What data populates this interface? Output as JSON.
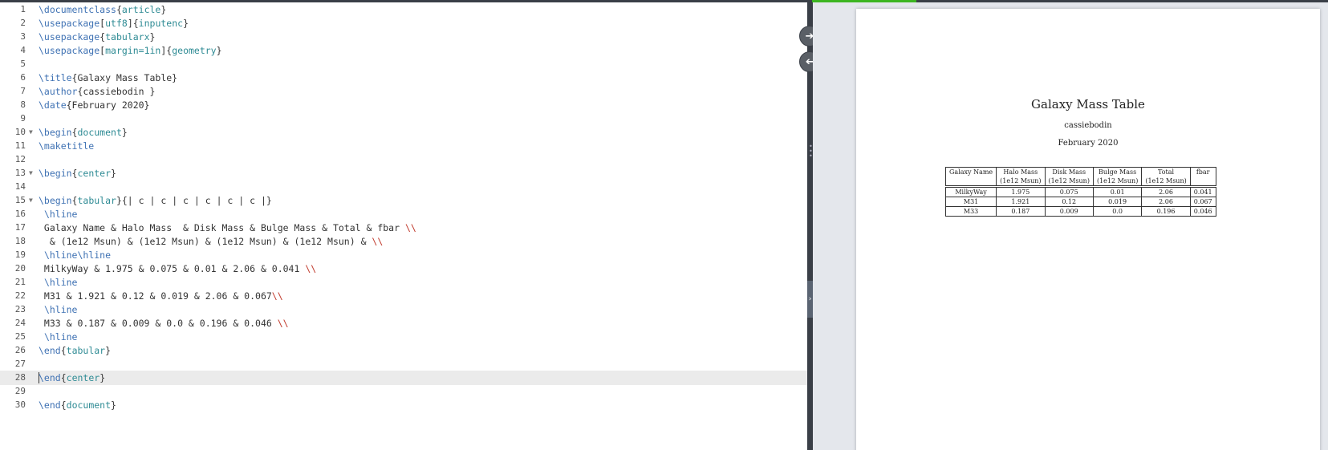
{
  "editor": {
    "active_line": 28,
    "lines": [
      [
        {
          "t": "cmd",
          "v": "\\documentclass"
        },
        {
          "t": "txt",
          "v": "{"
        },
        {
          "t": "arg",
          "v": "article"
        },
        {
          "t": "txt",
          "v": "}"
        }
      ],
      [
        {
          "t": "cmd",
          "v": "\\usepackage"
        },
        {
          "t": "txt",
          "v": "["
        },
        {
          "t": "arg",
          "v": "utf8"
        },
        {
          "t": "txt",
          "v": "]{"
        },
        {
          "t": "arg",
          "v": "inputenc"
        },
        {
          "t": "txt",
          "v": "}"
        }
      ],
      [
        {
          "t": "cmd",
          "v": "\\usepackage"
        },
        {
          "t": "txt",
          "v": "{"
        },
        {
          "t": "arg",
          "v": "tabularx"
        },
        {
          "t": "txt",
          "v": "}"
        }
      ],
      [
        {
          "t": "cmd",
          "v": "\\usepackage"
        },
        {
          "t": "txt",
          "v": "["
        },
        {
          "t": "arg",
          "v": "margin=1in"
        },
        {
          "t": "txt",
          "v": "]{"
        },
        {
          "t": "arg",
          "v": "geometry"
        },
        {
          "t": "txt",
          "v": "}"
        }
      ],
      [],
      [
        {
          "t": "cmd",
          "v": "\\title"
        },
        {
          "t": "txt",
          "v": "{Galaxy Mass Table}"
        }
      ],
      [
        {
          "t": "cmd",
          "v": "\\author"
        },
        {
          "t": "txt",
          "v": "{cassiebodin }"
        }
      ],
      [
        {
          "t": "cmd",
          "v": "\\date"
        },
        {
          "t": "txt",
          "v": "{February 2020}"
        }
      ],
      [],
      [
        {
          "t": "cmd",
          "v": "\\begin"
        },
        {
          "t": "txt",
          "v": "{"
        },
        {
          "t": "arg",
          "v": "document"
        },
        {
          "t": "txt",
          "v": "}"
        }
      ],
      [
        {
          "t": "cmd",
          "v": "\\maketitle"
        }
      ],
      [],
      [
        {
          "t": "cmd",
          "v": "\\begin"
        },
        {
          "t": "txt",
          "v": "{"
        },
        {
          "t": "arg",
          "v": "center"
        },
        {
          "t": "txt",
          "v": "}"
        }
      ],
      [],
      [
        {
          "t": "cmd",
          "v": "\\begin"
        },
        {
          "t": "txt",
          "v": "{"
        },
        {
          "t": "arg",
          "v": "tabular"
        },
        {
          "t": "txt",
          "v": "}{| c | c | c | c | c | c |}"
        }
      ],
      [
        {
          "t": "txt",
          "v": " "
        },
        {
          "t": "cmd",
          "v": "\\hline"
        }
      ],
      [
        {
          "t": "txt",
          "v": " Galaxy Name & Halo Mass  & Disk Mass & Bulge Mass & Total & fbar "
        },
        {
          "t": "brk",
          "v": "\\\\"
        }
      ],
      [
        {
          "t": "txt",
          "v": "  & (1e12 Msun) & (1e12 Msun) & (1e12 Msun) & (1e12 Msun) & "
        },
        {
          "t": "brk",
          "v": "\\\\"
        }
      ],
      [
        {
          "t": "txt",
          "v": " "
        },
        {
          "t": "cmd",
          "v": "\\hline\\hline"
        }
      ],
      [
        {
          "t": "txt",
          "v": " MilkyWay & 1.975 & 0.075 & 0.01 & 2.06 & 0.041 "
        },
        {
          "t": "brk",
          "v": "\\\\"
        }
      ],
      [
        {
          "t": "txt",
          "v": " "
        },
        {
          "t": "cmd",
          "v": "\\hline"
        }
      ],
      [
        {
          "t": "txt",
          "v": " M31 & 1.921 & 0.12 & 0.019 & 2.06 & 0.067"
        },
        {
          "t": "brk",
          "v": "\\\\"
        }
      ],
      [
        {
          "t": "txt",
          "v": " "
        },
        {
          "t": "cmd",
          "v": "\\hline"
        }
      ],
      [
        {
          "t": "txt",
          "v": " M33 & 0.187 & 0.009 & 0.0 & 0.196 & 0.046 "
        },
        {
          "t": "brk",
          "v": "\\\\"
        }
      ],
      [
        {
          "t": "txt",
          "v": " "
        },
        {
          "t": "cmd",
          "v": "\\hline"
        }
      ],
      [
        {
          "t": "cmd",
          "v": "\\end"
        },
        {
          "t": "txt",
          "v": "{"
        },
        {
          "t": "arg",
          "v": "tabular"
        },
        {
          "t": "txt",
          "v": "}"
        }
      ],
      [],
      [
        {
          "t": "cmd",
          "v": "\\end"
        },
        {
          "t": "txt",
          "v": "{"
        },
        {
          "t": "arg",
          "v": "center"
        },
        {
          "t": "txt",
          "v": "}"
        }
      ],
      [],
      [
        {
          "t": "cmd",
          "v": "\\end"
        },
        {
          "t": "txt",
          "v": "{"
        },
        {
          "t": "arg",
          "v": "document"
        },
        {
          "t": "txt",
          "v": "}"
        }
      ]
    ],
    "fold_lines": [
      10,
      13,
      15
    ]
  },
  "splitter": {
    "to_pdf_icon": "arrow-right-icon",
    "to_code_icon": "arrow-left-icon",
    "collapse_glyph": "›"
  },
  "preview": {
    "title": "Galaxy Mass Table",
    "author": "cassiebodin",
    "date": "February 2020",
    "table": {
      "header": [
        "Galaxy Name",
        "Halo Mass",
        "Disk Mass",
        "Bulge Mass",
        "Total",
        "fbar"
      ],
      "subheader": [
        "",
        "(1e12 Msun)",
        "(1e12 Msun)",
        "(1e12 Msun)",
        "(1e12 Msun)",
        ""
      ],
      "rows": [
        [
          "MilkyWay",
          "1.975",
          "0.075",
          "0.01",
          "2.06",
          "0.041"
        ],
        [
          "M31",
          "1.921",
          "0.12",
          "0.019",
          "2.06",
          "0.067"
        ],
        [
          "M33",
          "0.187",
          "0.009",
          "0.0",
          "0.196",
          "0.046"
        ]
      ]
    }
  },
  "colors": {
    "command": "#3e71b3",
    "argument": "#2e8b94",
    "linebreak": "#c0392b",
    "splitter": "#3a3f47",
    "preview_bg": "#e4e7ec"
  }
}
